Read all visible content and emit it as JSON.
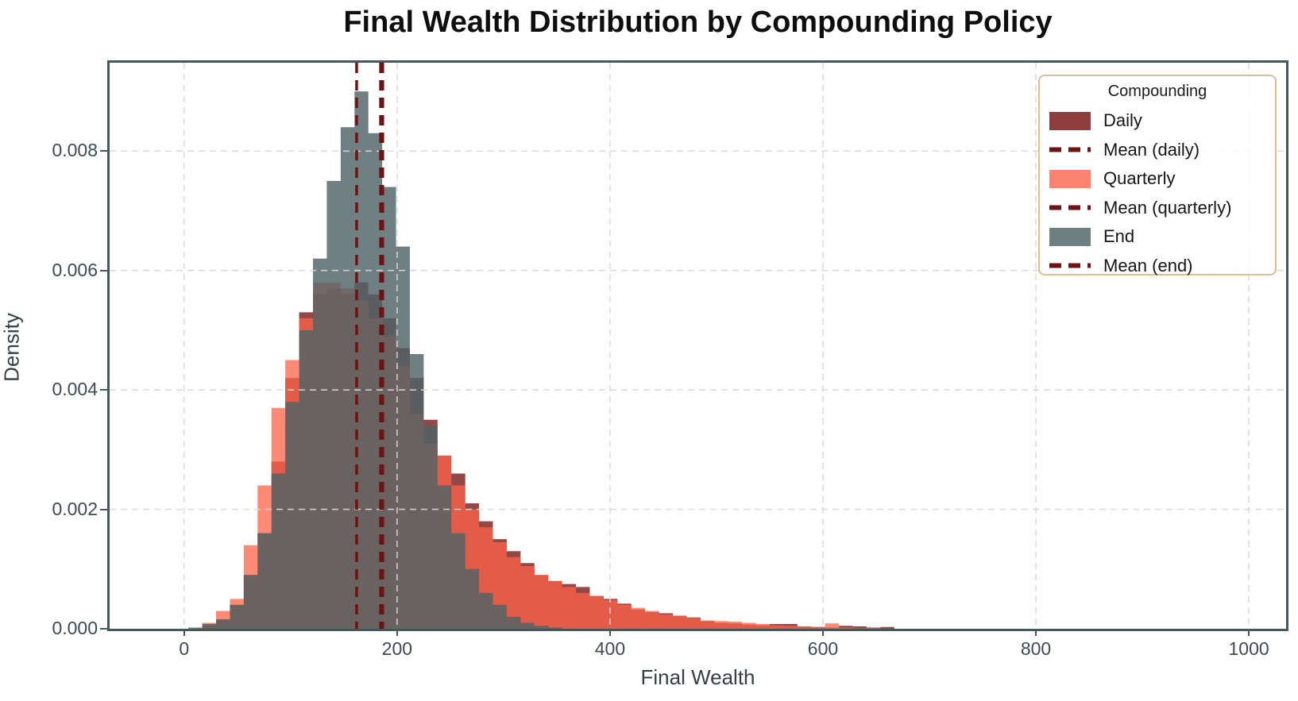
{
  "title": "Final Wealth Distribution by Compounding Policy",
  "axes": {
    "xlabel": "Final Wealth",
    "ylabel": "Density",
    "xticks": [
      0,
      200,
      400,
      600,
      800,
      1000
    ],
    "yticks": [
      {
        "value": 0.0,
        "label": "0.000"
      },
      {
        "value": 0.002,
        "label": "0.002"
      },
      {
        "value": 0.004,
        "label": "0.004"
      },
      {
        "value": 0.006,
        "label": "0.006"
      },
      {
        "value": 0.008,
        "label": "0.008"
      }
    ],
    "xlim": [
      -70,
      1035
    ],
    "ylim": [
      0,
      0.00948
    ],
    "grid": "dashed"
  },
  "legend": {
    "title": "Compounding",
    "position": "upper right",
    "entries": [
      {
        "label": "Daily",
        "swatch": "patch",
        "color": "#8f3d3d"
      },
      {
        "label": "Mean (daily)",
        "swatch": "dashed-line",
        "color": "#6e1214"
      },
      {
        "label": "Quarterly",
        "swatch": "patch",
        "color": "#fb8370"
      },
      {
        "label": "Mean (quarterly)",
        "swatch": "dashed-line",
        "color": "#6e1214"
      },
      {
        "label": "End",
        "swatch": "patch",
        "color": "#6e7f82"
      },
      {
        "label": "Mean (end)",
        "swatch": "dashed-line",
        "color": "#6e1214"
      }
    ]
  },
  "colors": {
    "axis_spine": "#47585c",
    "grid_line": "#d9d9d3",
    "tick_label": "#3e4c50",
    "mean_line": "#6e1214",
    "daily_fill": "#8B3A3A",
    "quarterly_fill": "#FF6347",
    "end_fill": "#4f6367"
  },
  "chart_data": {
    "type": "histogram",
    "title": "Final Wealth Distribution by Compounding Policy",
    "xlabel": "Final Wealth",
    "ylabel": "Density",
    "xlim": [
      -70,
      1035
    ],
    "ylim": [
      0,
      0.00948
    ],
    "grid": true,
    "legend_position": "upper right",
    "bin_edges": [
      4,
      17,
      30,
      43,
      56,
      69,
      82,
      95,
      108,
      121,
      134,
      147,
      160,
      173,
      186,
      199,
      212,
      225,
      238,
      251,
      264,
      277,
      290,
      303,
      316,
      329,
      342,
      355,
      368,
      381,
      394,
      407,
      420,
      433,
      446,
      459,
      472,
      485,
      498,
      511,
      524,
      537,
      550,
      563,
      576,
      589,
      602,
      615,
      628,
      641,
      654,
      667
    ],
    "series": [
      {
        "name": "Daily",
        "fill": "#8B3A3A",
        "fill_opacity": 0.93,
        "values": [
          0,
          5e-05,
          0.00015,
          0.0004,
          0.0009,
          0.0016,
          0.0028,
          0.0042,
          0.0053,
          0.0056,
          0.0057,
          0.0056,
          0.0058,
          0.0056,
          0.0052,
          0.0047,
          0.0042,
          0.0035,
          0.0029,
          0.0026,
          0.0021,
          0.0018,
          0.0015,
          0.0013,
          0.0011,
          0.0009,
          0.0008,
          0.00075,
          0.0007,
          0.00055,
          0.0005,
          0.00042,
          0.00032,
          0.00028,
          0.00026,
          0.00022,
          0.00019,
          0.00013,
          0.0001,
          9e-05,
          7e-05,
          6e-05,
          8e-05,
          8e-05,
          4e-05,
          3e-05,
          2e-05,
          5e-05,
          4e-05,
          2e-05,
          3e-05
        ]
      },
      {
        "name": "Quarterly",
        "fill": "#FF6347",
        "fill_opacity": 0.75,
        "values": [
          0,
          0.0001,
          0.0003,
          0.0005,
          0.0014,
          0.0024,
          0.0037,
          0.0045,
          0.0052,
          0.0058,
          0.0058,
          0.0057,
          0.0055,
          0.0052,
          0.0049,
          0.0044,
          0.0036,
          0.0031,
          0.0029,
          0.0024,
          0.002,
          0.0017,
          0.00145,
          0.0012,
          0.00105,
          0.0009,
          0.0008,
          0.0007,
          0.0006,
          0.00055,
          0.00048,
          0.0004,
          0.00035,
          0.0003,
          0.00024,
          0.00022,
          0.00018,
          0.00014,
          0.00013,
          0.00012,
          0.0001,
          8e-05,
          6e-05,
          5e-05,
          4e-05,
          3e-05,
          9e-05,
          2e-05,
          1e-05,
          1e-05,
          0
        ]
      },
      {
        "name": "End",
        "fill": "#4f6367",
        "fill_opacity": 0.82,
        "values": [
          2e-05,
          8e-05,
          0.00016,
          0.0004,
          0.0009,
          0.0016,
          0.0026,
          0.0038,
          0.005,
          0.0062,
          0.0075,
          0.0084,
          0.009,
          0.0083,
          0.0074,
          0.0064,
          0.0046,
          0.0034,
          0.0024,
          0.0016,
          0.001,
          0.0006,
          0.0004,
          0.0002,
          0.0001,
          5e-05,
          2e-05,
          0,
          0,
          0,
          0,
          0,
          0,
          0,
          0,
          0,
          0,
          0,
          0,
          0,
          0,
          0,
          0,
          0,
          0,
          0,
          0,
          0,
          0,
          0,
          0
        ]
      }
    ],
    "mean_lines": [
      {
        "name": "Mean (daily)",
        "x": 184.5,
        "color": "#6e1214",
        "style": "dashed"
      },
      {
        "name": "Mean (quarterly)",
        "x": 186.5,
        "color": "#6e1214",
        "style": "dashed"
      },
      {
        "name": "Mean (end)",
        "x": 162,
        "color": "#6e1214",
        "style": "dashed"
      }
    ]
  }
}
